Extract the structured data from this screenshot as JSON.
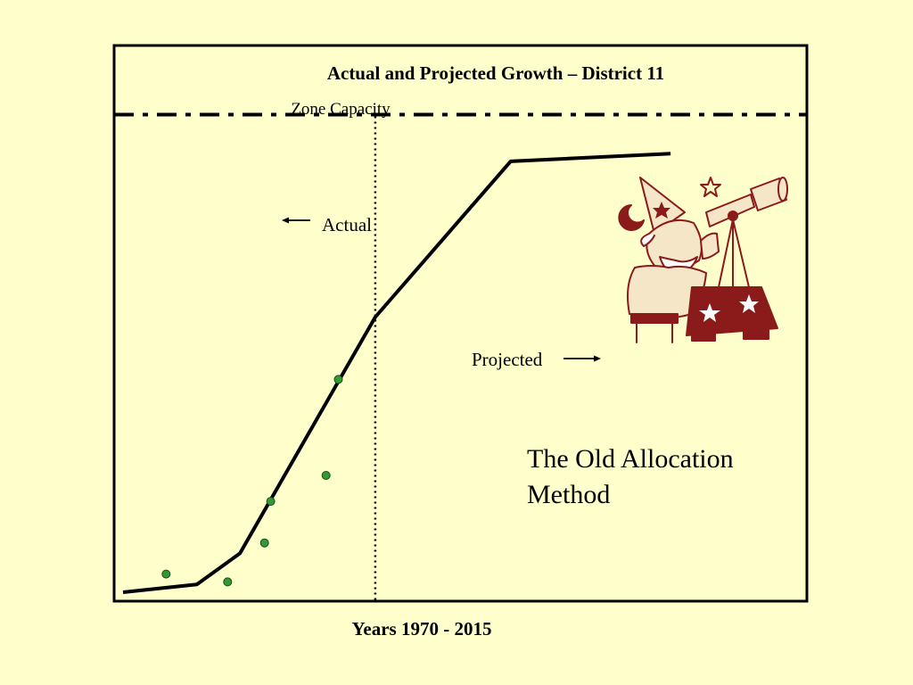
{
  "chart_data": {
    "type": "line",
    "title": "Actual and Projected Growth – District 11",
    "xlabel": "Years 1970 - 2015",
    "ylabel": "",
    "grid": false,
    "reference_line": {
      "label": "Zone Capacity",
      "value": 92
    },
    "divider": {
      "value": 0.41
    },
    "annotations": {
      "actual": "Actual",
      "projected": "Projected"
    },
    "series": [
      {
        "kind": "line",
        "x": [
          0.0,
          0.12,
          0.19,
          0.41,
          0.63,
          0.89
        ],
        "y": [
          0.0,
          1.5,
          7.5,
          53.0,
          83.0,
          84.5
        ]
      },
      {
        "kind": "points",
        "x": [
          0.07,
          0.17,
          0.23,
          0.24,
          0.33,
          0.35
        ],
        "y": [
          3.5,
          2.0,
          9.5,
          17.5,
          22.5,
          41.0
        ]
      }
    ],
    "xlim": [
      0,
      1
    ],
    "ylim": [
      0,
      100
    ],
    "colors": {
      "background": "#ffffcc",
      "line": "#000000",
      "points": "#339933",
      "wizard": "#8b1a1a"
    }
  },
  "subtitle": [
    "The Old Allocation",
    "Method"
  ],
  "illustration": "wizard-with-telescope"
}
